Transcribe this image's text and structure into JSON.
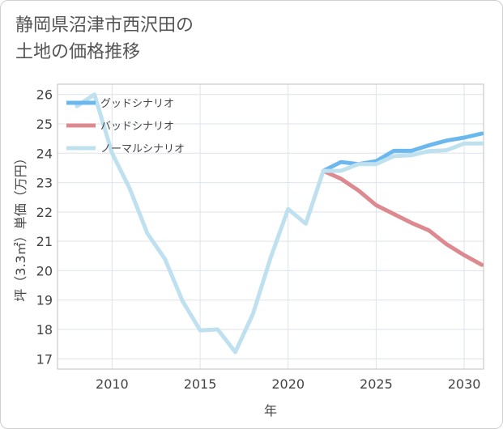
{
  "chart_data": {
    "type": "line",
    "title": "静岡県沼津市西沢田の土地の価格推移",
    "title_lines": [
      "静岡県沼津市西沢田の",
      "土地の価格推移"
    ],
    "xlabel": "年",
    "ylabel": "坪（3.3㎡）単価（万円）",
    "xlim": [
      2006.9,
      2031.1
    ],
    "ylim": [
      16.65,
      26.35
    ],
    "x_ticks": [
      2010,
      2015,
      2020,
      2025,
      2030
    ],
    "x_tick_labels": [
      "2010",
      "2015",
      "2020",
      "2025",
      "2030"
    ],
    "y_ticks": [
      17,
      18,
      19,
      20,
      21,
      22,
      23,
      24,
      25,
      26
    ],
    "y_tick_labels": [
      "17",
      "18",
      "19",
      "20",
      "21",
      "22",
      "23",
      "24",
      "25",
      "26"
    ],
    "grid": true,
    "legend_position": "top-left",
    "series": [
      {
        "name": "グッドシナリオ",
        "color": "#6bb8ef",
        "x": [
          2022,
          2023,
          2024,
          2025,
          2026,
          2027,
          2028,
          2029,
          2030,
          2031
        ],
        "values": [
          23.4,
          23.7,
          23.63,
          23.73,
          24.08,
          24.08,
          24.27,
          24.43,
          24.53,
          24.67
        ]
      },
      {
        "name": "バッドシナリオ",
        "color": "#dc8a90",
        "x": [
          2022,
          2023,
          2024,
          2025,
          2026,
          2027,
          2028,
          2029,
          2030,
          2031
        ],
        "values": [
          23.4,
          23.13,
          22.73,
          22.23,
          21.93,
          21.63,
          21.37,
          20.9,
          20.53,
          20.2
        ]
      },
      {
        "name": "ノーマルシナリオ",
        "color": "#bfe0ef",
        "x": [
          2008,
          2009,
          2010,
          2011,
          2012,
          2013,
          2014,
          2015,
          2016,
          2017,
          2018,
          2019,
          2020,
          2021,
          2022,
          2023,
          2024,
          2025,
          2026,
          2027,
          2028,
          2029,
          2030,
          2031
        ],
        "values": [
          25.6,
          26.0,
          24.0,
          22.8,
          21.27,
          20.4,
          18.97,
          17.97,
          18.0,
          17.23,
          18.53,
          20.43,
          22.1,
          21.6,
          23.4,
          23.4,
          23.63,
          23.63,
          23.9,
          23.93,
          24.07,
          24.1,
          24.33,
          24.33
        ]
      }
    ]
  }
}
